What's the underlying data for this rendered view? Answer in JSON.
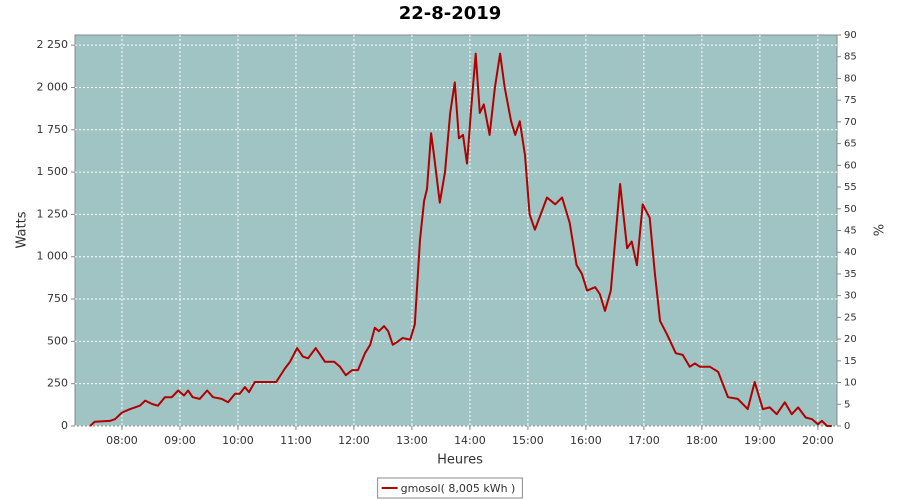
{
  "chart_data": {
    "type": "line",
    "title": "22-8-2019",
    "x_label": "Heures",
    "y_label": "Watts",
    "y2_label": "%",
    "xlim": [
      7.19,
      20.33
    ],
    "ylim": [
      0,
      2310
    ],
    "y2lim": [
      0,
      90
    ],
    "xticks": [
      {
        "value": 8,
        "label": "08:00"
      },
      {
        "value": 9,
        "label": "09:00"
      },
      {
        "value": 10,
        "label": "10:00"
      },
      {
        "value": 11,
        "label": "11:00"
      },
      {
        "value": 12,
        "label": "12:00"
      },
      {
        "value": 13,
        "label": "13:00"
      },
      {
        "value": 14,
        "label": "14:00"
      },
      {
        "value": 15,
        "label": "15:00"
      },
      {
        "value": 16,
        "label": "16:00"
      },
      {
        "value": 17,
        "label": "17:00"
      },
      {
        "value": 18,
        "label": "18:00"
      },
      {
        "value": 19,
        "label": "19:00"
      },
      {
        "value": 20,
        "label": "20:00"
      }
    ],
    "yticks": [
      0,
      250,
      500,
      750,
      {
        "value": 1000,
        "label": "1 000"
      },
      {
        "value": 1250,
        "label": "1 250"
      },
      {
        "value": 1500,
        "label": "1 500"
      },
      {
        "value": 1750,
        "label": "1 750"
      },
      {
        "value": 2000,
        "label": "2 000"
      },
      {
        "value": 2250,
        "label": "2 250"
      }
    ],
    "y2ticks": [
      0,
      5,
      10,
      15,
      20,
      25,
      30,
      35,
      40,
      45,
      50,
      55,
      60,
      65,
      70,
      75,
      80,
      85,
      90
    ],
    "grid": true,
    "background": "#a0c4c4",
    "legend": "bottom",
    "x": [
      7.45,
      7.53,
      7.79,
      7.88,
      8.0,
      8.14,
      8.31,
      8.4,
      8.52,
      8.62,
      8.74,
      8.86,
      8.97,
      9.07,
      9.14,
      9.22,
      9.34,
      9.47,
      9.57,
      9.72,
      9.83,
      9.95,
      10.03,
      10.12,
      10.19,
      10.29,
      10.41,
      10.66,
      10.81,
      10.9,
      11.02,
      11.12,
      11.21,
      11.34,
      11.5,
      11.66,
      11.76,
      11.86,
      11.97,
      12.07,
      12.19,
      12.28,
      12.36,
      12.43,
      12.52,
      12.59,
      12.67,
      12.76,
      12.84,
      12.97,
      13.05,
      13.14,
      13.21,
      13.26,
      13.33,
      13.38,
      13.48,
      13.57,
      13.66,
      13.74,
      13.81,
      13.88,
      13.95,
      14.02,
      14.1,
      14.17,
      14.24,
      14.34,
      14.43,
      14.52,
      14.6,
      14.71,
      14.78,
      14.86,
      14.95,
      15.03,
      15.12,
      15.22,
      15.33,
      15.47,
      15.59,
      15.72,
      15.84,
      15.93,
      16.02,
      16.16,
      16.24,
      16.33,
      16.43,
      16.59,
      16.71,
      16.79,
      16.88,
      16.98,
      17.1,
      17.19,
      17.28,
      17.4,
      17.55,
      17.67,
      17.79,
      17.88,
      17.97,
      18.14,
      18.28,
      18.45,
      18.62,
      18.79,
      18.91,
      19.05,
      19.17,
      19.29,
      19.43,
      19.55,
      19.66,
      19.79,
      19.9,
      20.0,
      20.07,
      20.16,
      20.24
    ],
    "series": [
      {
        "name": "gmosol( 8,005 kWh )",
        "color": "#b00000",
        "values": [
          0,
          25,
          30,
          40,
          80,
          100,
          120,
          150,
          130,
          120,
          170,
          170,
          210,
          180,
          210,
          170,
          160,
          210,
          170,
          160,
          140,
          190,
          190,
          230,
          200,
          260,
          260,
          260,
          340,
          380,
          460,
          410,
          400,
          460,
          380,
          380,
          350,
          300,
          330,
          330,
          430,
          480,
          580,
          560,
          590,
          560,
          480,
          500,
          520,
          510,
          600,
          1100,
          1330,
          1400,
          1730,
          1600,
          1320,
          1500,
          1850,
          2030,
          1700,
          1720,
          1550,
          1870,
          2200,
          1850,
          1900,
          1720,
          2000,
          2200,
          2000,
          1800,
          1720,
          1800,
          1600,
          1250,
          1160,
          1250,
          1350,
          1310,
          1350,
          1200,
          950,
          900,
          800,
          820,
          780,
          680,
          800,
          1430,
          1050,
          1090,
          950,
          1310,
          1230,
          900,
          620,
          540,
          430,
          420,
          350,
          370,
          350,
          350,
          320,
          170,
          160,
          100,
          260,
          100,
          110,
          70,
          140,
          70,
          110,
          50,
          40,
          10,
          30,
          0,
          0
        ]
      }
    ]
  }
}
